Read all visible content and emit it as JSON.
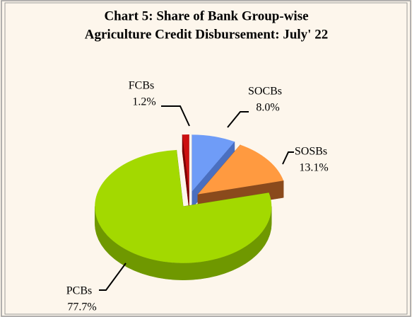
{
  "chart_data": {
    "type": "pie",
    "title": [
      "Chart 5: Share of Bank Group-wise",
      "Agriculture Credit Disbursement: July' 22"
    ],
    "categories": [
      "SOCBs",
      "SOSBs",
      "PCBs",
      "FCBs"
    ],
    "values": [
      8.0,
      13.1,
      77.7,
      1.2
    ],
    "value_labels": [
      "8.0%",
      "13.1%",
      "77.7%",
      "1.2%"
    ],
    "colors": [
      "#6f9cf7",
      "#ff9a40",
      "#a3d900",
      "#cc1010"
    ],
    "side_colors": [
      "#4a6fc0",
      "#8a4a1c",
      "#6f9800",
      "#7a0000"
    ]
  }
}
